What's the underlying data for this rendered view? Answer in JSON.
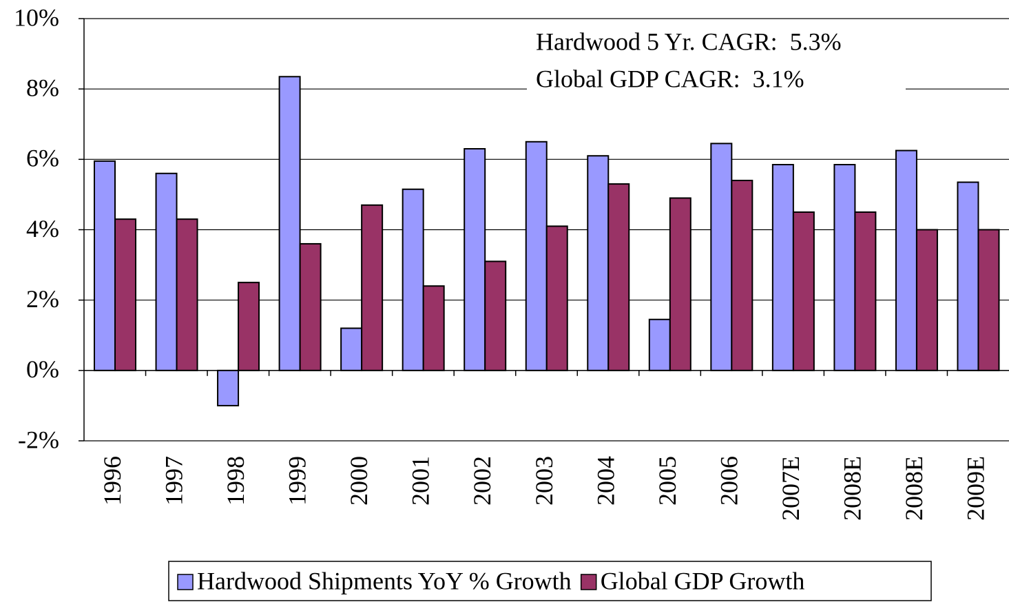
{
  "chart_data": {
    "type": "bar",
    "categories": [
      "1996",
      "1997",
      "1998",
      "1999",
      "2000",
      "2001",
      "2002",
      "2003",
      "2004",
      "2005",
      "2006",
      "2007E",
      "2008E",
      "2008E",
      "2009E"
    ],
    "series": [
      {
        "name": "Hardwood Shipments YoY % Growth",
        "color": "#9999ff",
        "values": [
          5.95,
          5.6,
          -1.0,
          8.35,
          1.2,
          5.15,
          6.3,
          6.5,
          6.1,
          1.45,
          6.45,
          5.85,
          5.85,
          6.25,
          5.35
        ]
      },
      {
        "name": "Global GDP Growth",
        "color": "#993366",
        "values": [
          4.3,
          4.3,
          2.5,
          3.6,
          4.7,
          2.4,
          3.1,
          4.1,
          5.3,
          4.9,
          5.4,
          4.5,
          4.5,
          4.0,
          4.0
        ]
      }
    ],
    "annotations": [
      "Hardwood 5 Yr. CAGR:  5.3%",
      "Global GDP CAGR:  3.1%"
    ],
    "ylim": [
      -2,
      10
    ],
    "yticks": [
      {
        "value": -2,
        "label": "-2%"
      },
      {
        "value": 0,
        "label": "0%"
      },
      {
        "value": 2,
        "label": "2%"
      },
      {
        "value": 4,
        "label": "4%"
      },
      {
        "value": 6,
        "label": "6%"
      },
      {
        "value": 8,
        "label": "8%"
      },
      {
        "value": 10,
        "label": "10%"
      }
    ],
    "grid": true,
    "legend": "bottom"
  }
}
